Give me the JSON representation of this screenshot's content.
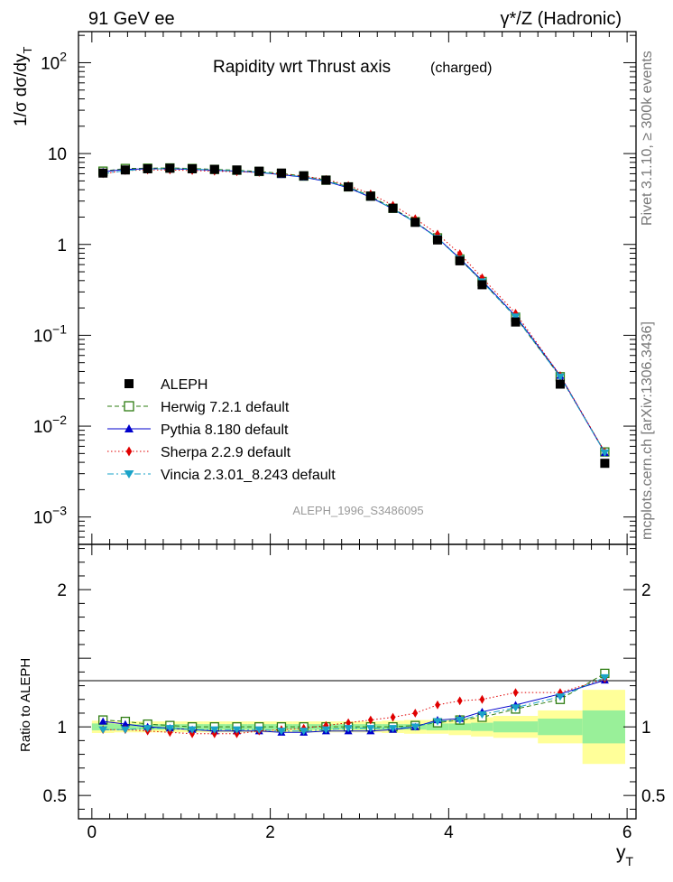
{
  "header": {
    "left_label": "91 GeV ee",
    "right_label": "γ*/Z (Hadronic)"
  },
  "sidebar": {
    "rivet": "Rivet 3.1.10, ≥ 300k events",
    "mcplots": "mcplots.cern.ch [arXiv:1306.3436]"
  },
  "colors": {
    "data": "#000000",
    "herwig": "#2e7d12",
    "pythia": "#0000cc",
    "sherpa": "#e00000",
    "vincia": "#1aa3c8",
    "band_inner": "#99f099",
    "band_outer": "#ffff99"
  },
  "chart_data": [
    {
      "type": "scatter",
      "panel": "main",
      "title_main": "Rapidity wrt Thrust axis",
      "title_sub": "(charged)",
      "ylabel": "1/σ dσ/dy",
      "ylabel_sub": "T",
      "ylim": [
        0.0005,
        220
      ],
      "yscale": "log",
      "xlim": [
        -0.15,
        6.1
      ],
      "watermark": "ALEPH_1996_S3486095",
      "y_ticks": [
        {
          "value": 0.001,
          "base": "10",
          "exp": "−3"
        },
        {
          "value": 0.01,
          "base": "10",
          "exp": "−2"
        },
        {
          "value": 0.1,
          "base": "10",
          "exp": "−1"
        },
        {
          "value": 1,
          "base": "1",
          "exp": ""
        },
        {
          "value": 10,
          "base": "10",
          "exp": ""
        },
        {
          "value": 100,
          "base": "10",
          "exp": "2"
        }
      ],
      "x": [
        0.125,
        0.375,
        0.625,
        0.875,
        1.125,
        1.375,
        1.625,
        1.875,
        2.125,
        2.375,
        2.625,
        2.875,
        3.125,
        3.375,
        3.625,
        3.875,
        4.125,
        4.375,
        4.75,
        5.25,
        5.75
      ],
      "series": [
        {
          "name": "ALEPH",
          "key": "data",
          "marker": "square-filled",
          "line": "none",
          "values": [
            6.1,
            6.6,
            6.8,
            6.9,
            6.8,
            6.7,
            6.6,
            6.4,
            6.1,
            5.7,
            5.1,
            4.3,
            3.4,
            2.5,
            1.75,
            1.12,
            0.66,
            0.36,
            0.14,
            0.029,
            0.0039
          ]
        },
        {
          "name": "Herwig 7.2.1 default",
          "key": "herwig",
          "marker": "square-open",
          "line": "dashed",
          "values": [
            6.4,
            6.85,
            6.9,
            6.95,
            6.85,
            6.7,
            6.55,
            6.35,
            6.05,
            5.65,
            5.1,
            4.3,
            3.4,
            2.5,
            1.78,
            1.18,
            0.69,
            0.39,
            0.158,
            0.035,
            0.0052
          ]
        },
        {
          "name": "Pythia 8.180 default",
          "key": "pythia",
          "marker": "triangle-up",
          "line": "solid",
          "values": [
            6.3,
            6.7,
            6.8,
            6.8,
            6.7,
            6.55,
            6.4,
            6.2,
            5.85,
            5.5,
            4.95,
            4.2,
            3.3,
            2.45,
            1.75,
            1.18,
            0.7,
            0.4,
            0.163,
            0.036,
            0.0051
          ]
        },
        {
          "name": "Sherpa 2.2.9 default",
          "key": "sherpa",
          "marker": "diamond",
          "line": "dotted",
          "values": [
            6.0,
            6.5,
            6.6,
            6.6,
            6.5,
            6.4,
            6.3,
            6.2,
            5.95,
            5.65,
            5.2,
            4.45,
            3.6,
            2.7,
            1.92,
            1.3,
            0.79,
            0.43,
            0.175,
            0.036,
            0.0052
          ]
        },
        {
          "name": "Vincia 2.3.01_8.243 default",
          "key": "vincia",
          "marker": "triangle-down",
          "line": "dashdot",
          "values": [
            6.0,
            6.5,
            6.75,
            6.85,
            6.75,
            6.6,
            6.45,
            6.25,
            5.9,
            5.55,
            5.0,
            4.25,
            3.35,
            2.45,
            1.75,
            1.17,
            0.69,
            0.39,
            0.16,
            0.035,
            0.0051
          ]
        }
      ]
    },
    {
      "type": "scatter",
      "panel": "ratio",
      "ylabel": "Ratio to ALEPH",
      "xlabel": "y",
      "xlabel_sub": "T",
      "ylim": [
        0.33,
        2.33
      ],
      "xlim": [
        -0.15,
        6.1
      ],
      "y_ticks": [
        0.5,
        1,
        2
      ],
      "y_tick_labels": [
        "0.5",
        "1",
        "2"
      ],
      "x_ticks": [
        0,
        2,
        4,
        6
      ],
      "x_tick_labels": [
        "0",
        "2",
        "4",
        "6"
      ],
      "x_edges": [
        0,
        0.25,
        0.5,
        0.75,
        1.0,
        1.25,
        1.5,
        1.75,
        2.0,
        2.25,
        2.5,
        2.75,
        3.0,
        3.25,
        3.5,
        3.75,
        4.0,
        4.25,
        4.5,
        5.0,
        5.5,
        6.0
      ],
      "band_inner": [
        0.025,
        0.02,
        0.02,
        0.02,
        0.02,
        0.02,
        0.02,
        0.02,
        0.02,
        0.02,
        0.02,
        0.02,
        0.02,
        0.02,
        0.02,
        0.025,
        0.025,
        0.03,
        0.04,
        0.06,
        0.12
      ],
      "band_outer": [
        0.045,
        0.04,
        0.04,
        0.04,
        0.04,
        0.04,
        0.04,
        0.04,
        0.04,
        0.04,
        0.04,
        0.04,
        0.04,
        0.045,
        0.05,
        0.05,
        0.06,
        0.07,
        0.08,
        0.12,
        0.27
      ],
      "series": [
        {
          "name": "Herwig 7.2.1 default",
          "key": "herwig",
          "marker": "square-open",
          "line": "dashed",
          "values": [
            1.05,
            1.04,
            1.02,
            1.01,
            1.0,
            1.0,
            1.0,
            1.0,
            1.0,
            1.0,
            1.0,
            1.0,
            1.0,
            1.0,
            1.01,
            1.03,
            1.05,
            1.07,
            1.13,
            1.2,
            1.39
          ]
        },
        {
          "name": "Pythia 8.180 default",
          "key": "pythia",
          "marker": "triangle-up",
          "line": "solid",
          "values": [
            1.04,
            1.02,
            1.0,
            0.99,
            0.98,
            0.97,
            0.97,
            0.97,
            0.96,
            0.96,
            0.97,
            0.97,
            0.97,
            0.98,
            1.0,
            1.05,
            1.06,
            1.11,
            1.16,
            1.24,
            1.34
          ]
        },
        {
          "name": "Sherpa 2.2.9 default",
          "key": "sherpa",
          "marker": "diamond",
          "line": "dotted",
          "values": [
            0.98,
            0.98,
            0.97,
            0.96,
            0.95,
            0.95,
            0.95,
            0.97,
            0.98,
            0.99,
            1.01,
            1.03,
            1.05,
            1.07,
            1.1,
            1.16,
            1.19,
            1.2,
            1.25,
            1.25,
            1.35
          ]
        },
        {
          "name": "Vincia 2.3.01_8.243 default",
          "key": "vincia",
          "marker": "triangle-down",
          "line": "dashdot",
          "values": [
            0.98,
            0.98,
            0.99,
            0.99,
            0.98,
            0.98,
            0.98,
            0.98,
            0.97,
            0.97,
            0.98,
            0.99,
            0.99,
            0.99,
            1.0,
            1.04,
            1.05,
            1.09,
            1.14,
            1.22,
            1.36
          ]
        }
      ]
    }
  ]
}
